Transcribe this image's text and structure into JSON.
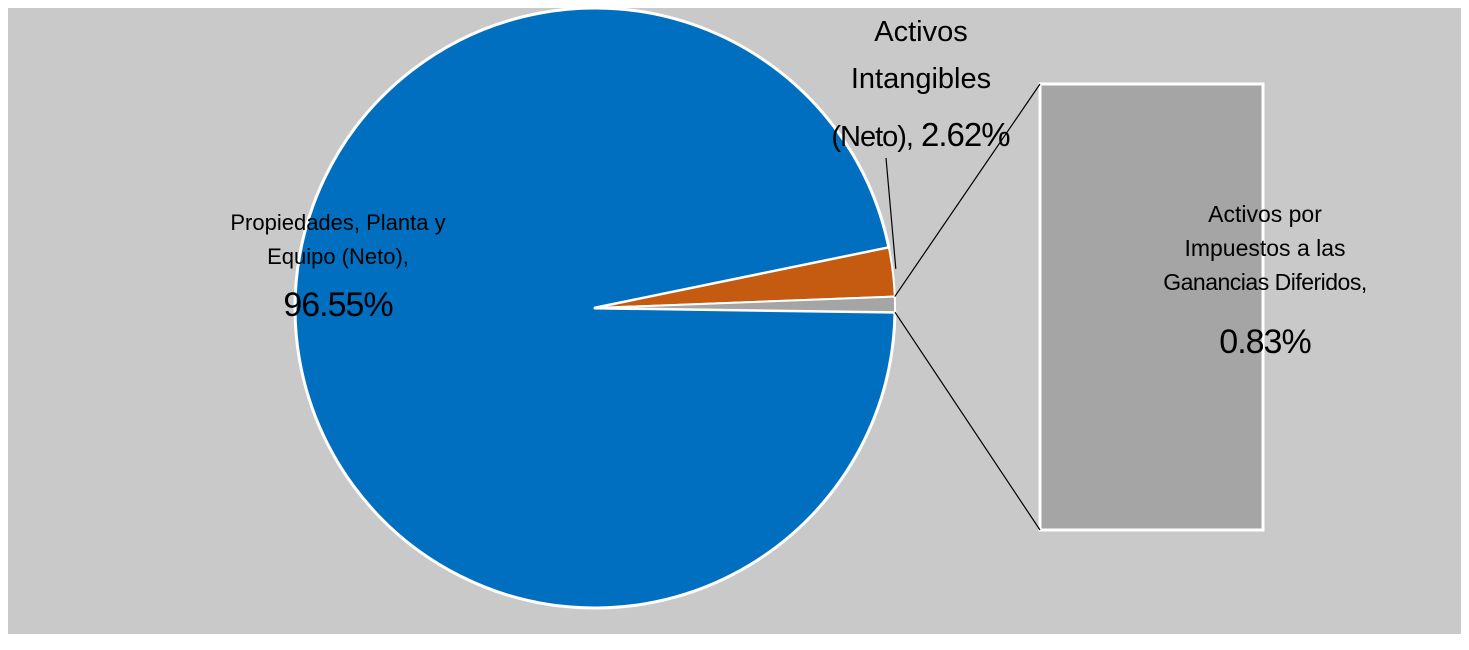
{
  "chart_data": {
    "type": "pie",
    "subtype": "bar-of-pie",
    "slices": [
      {
        "label_lines": [
          "Propiedades, Planta y",
          "Equipo (Neto),"
        ],
        "value": 96.55,
        "value_label": "96.55%",
        "color": "#006fc0"
      },
      {
        "label_lines": [
          "Activos",
          "Intangibles",
          "(Neto),"
        ],
        "value": 2.62,
        "value_label": "2.62%",
        "color": "#c55a11"
      },
      {
        "label_lines": [
          "Activos por",
          "Impuestos a las",
          "Ganancias Diferidos,"
        ],
        "value": 0.83,
        "value_label": "0.83%",
        "color": "#a5a5a5",
        "shown_in_secondary_bar": true
      }
    ],
    "legend": "none",
    "background": "#c9c9c9"
  }
}
